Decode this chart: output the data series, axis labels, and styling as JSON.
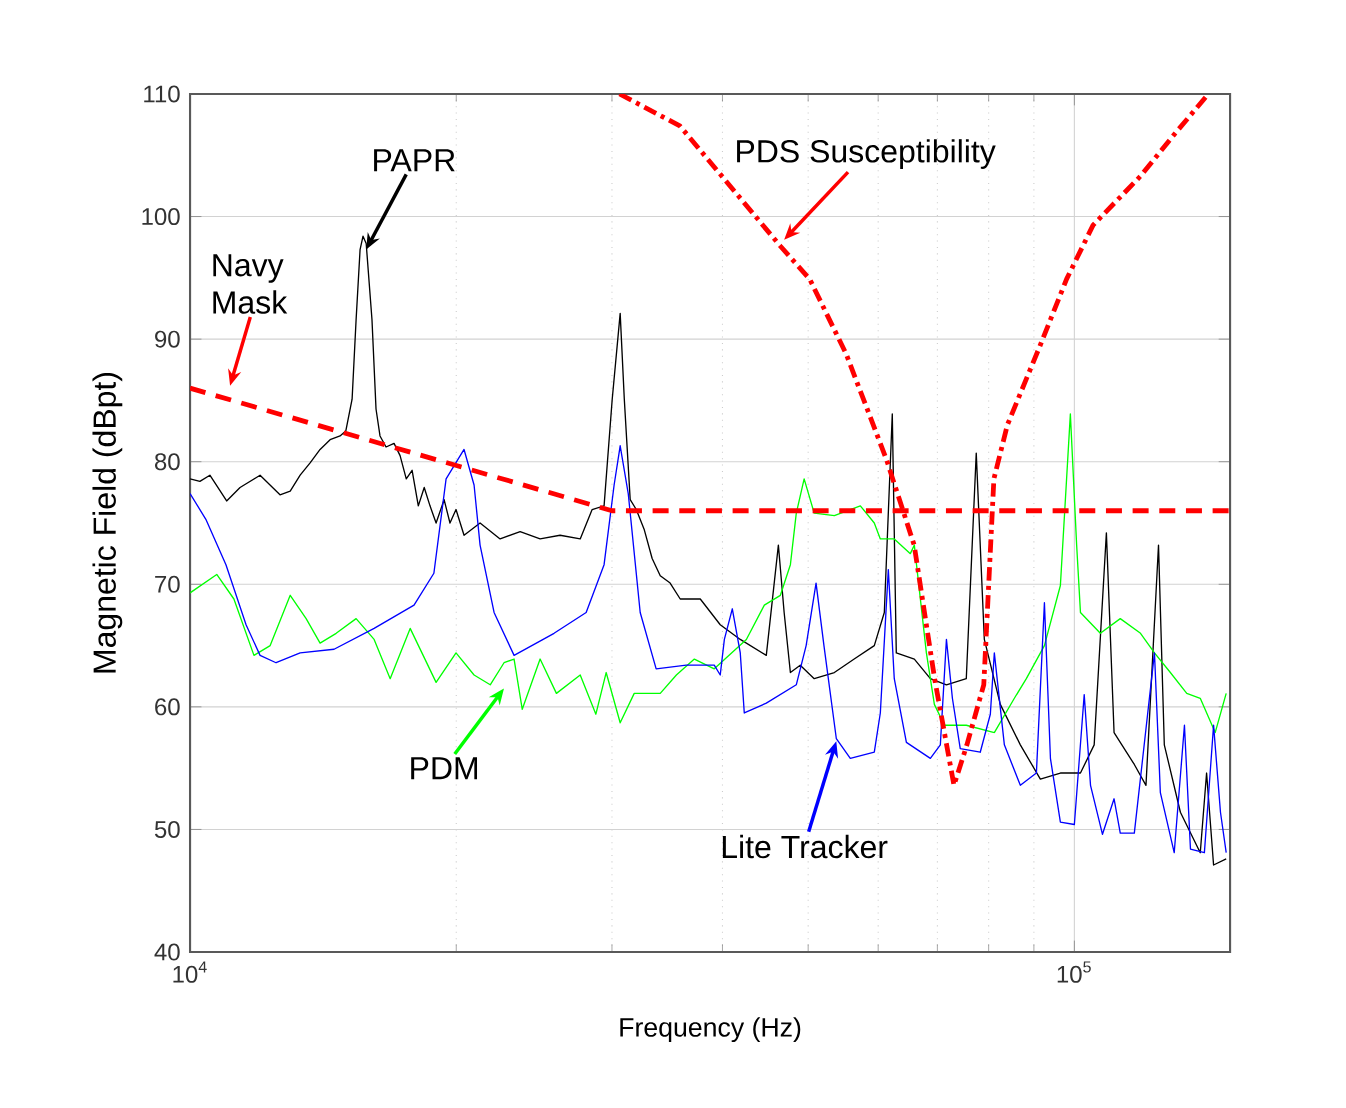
{
  "chart_data": {
    "type": "line",
    "xlabel": "Frequency (Hz)",
    "ylabel": "Magnetic Field (dBpt)",
    "log": "x",
    "grid": true,
    "xlim": [
      10000,
      150000
    ],
    "ylim": [
      40,
      110
    ],
    "xticks": [
      {
        "value": 10000,
        "label": "10$^{4}$"
      },
      {
        "value": 100000,
        "label": "10$^{5}$"
      }
    ],
    "yticks": [
      40,
      50,
      60,
      70,
      80,
      90,
      100,
      110
    ],
    "series": [
      {
        "name": "PAPR",
        "color": "#000000",
        "line_style": "solid",
        "x": [
          10000,
          10260,
          10530,
          11000,
          11390,
          12000,
          12640,
          12980,
          13320,
          13670,
          14030,
          14400,
          14780,
          15000,
          15250,
          15410,
          15570,
          15690,
          15820,
          16060,
          16230,
          16400,
          16660,
          17010,
          17280,
          17560,
          17830,
          18120,
          18400,
          18680,
          18980,
          19380,
          19680,
          19990,
          20410,
          21280,
          22420,
          23620,
          24880,
          26210,
          27620,
          28490,
          29390,
          30020,
          30650,
          30980,
          31460,
          31960,
          32620,
          33310,
          34020,
          34910,
          35840,
          37760,
          39780,
          41900,
          44840,
          46270,
          46970,
          47740,
          48980,
          50800,
          53530,
          56370,
          59400,
          60970,
          62250,
          62900,
          65930,
          68740,
          71670,
          75480,
          77470,
          79110,
          82470,
          86880,
          91530,
          96430,
          101600,
          105300,
          108700,
          110900,
          116900,
          120500,
          124500,
          126400,
          131800,
          138800,
          141100,
          143700,
          148500
        ],
        "values": [
          78.6,
          78.4,
          78.9,
          76.8,
          77.9,
          78.9,
          77.3,
          77.6,
          78.9,
          79.9,
          81.0,
          81.8,
          82.1,
          82.5,
          85.1,
          91.6,
          97.3,
          98.4,
          97.8,
          91.6,
          84.3,
          82.1,
          81.2,
          81.5,
          80.5,
          78.6,
          79.3,
          76.4,
          77.9,
          76.4,
          75.0,
          76.9,
          75.0,
          76.1,
          74.0,
          75.0,
          73.7,
          74.3,
          73.7,
          74.0,
          73.7,
          76.1,
          76.4,
          85.1,
          92.1,
          85.1,
          76.9,
          76.1,
          74.5,
          72.1,
          70.7,
          70.1,
          68.8,
          68.8,
          66.7,
          65.5,
          64.2,
          73.2,
          67.7,
          62.8,
          63.4,
          62.3,
          62.8,
          63.9,
          65.0,
          67.7,
          83.9,
          64.4,
          63.9,
          62.3,
          61.8,
          62.3,
          80.7,
          65.5,
          60.2,
          56.9,
          54.1,
          54.6,
          54.6,
          56.9,
          74.2,
          57.9,
          55.3,
          53.6,
          73.2,
          56.9,
          51.4,
          48.1,
          54.6,
          47.1,
          47.6
        ]
      },
      {
        "name": "PDM",
        "color": "#00ff00",
        "line_style": "solid",
        "x": [
          10000,
          10720,
          11210,
          11810,
          12320,
          12980,
          13530,
          14030,
          14630,
          15410,
          16150,
          16840,
          17740,
          18980,
          19990,
          20950,
          21850,
          22650,
          23250,
          23750,
          24880,
          25960,
          27620,
          28770,
          29550,
          30650,
          31790,
          34020,
          35480,
          37180,
          39160,
          42570,
          44610,
          46510,
          47740,
          48480,
          49480,
          50800,
          53530,
          57280,
          59400,
          60340,
          62570,
          65250,
          65930,
          68030,
          69460,
          71300,
          75480,
          81190,
          85540,
          88250,
          92500,
          96430,
          98970,
          100600,
          101600,
          107000,
          112700,
          118800,
          123200,
          128400,
          134000,
          138800,
          144300,
          148500
        ],
        "values": [
          69.3,
          70.8,
          68.8,
          64.2,
          65.0,
          69.1,
          67.2,
          65.2,
          66.0,
          67.2,
          65.5,
          62.3,
          66.4,
          62.0,
          64.4,
          62.6,
          61.8,
          63.6,
          63.9,
          59.8,
          63.9,
          61.1,
          62.6,
          59.4,
          62.8,
          58.7,
          61.1,
          61.1,
          62.6,
          63.9,
          63.1,
          65.5,
          68.3,
          69.1,
          71.6,
          75.8,
          78.6,
          75.8,
          75.6,
          76.4,
          75.0,
          73.7,
          73.7,
          72.5,
          73.2,
          64.4,
          60.2,
          58.5,
          58.5,
          57.9,
          60.7,
          62.3,
          65.0,
          69.9,
          83.9,
          73.2,
          67.7,
          66.0,
          67.2,
          66.0,
          64.4,
          62.8,
          61.1,
          60.7,
          57.9,
          61.1
        ]
      },
      {
        "name": "Lite Tracker",
        "color": "#0000ff",
        "line_style": "solid",
        "x": [
          10000,
          10420,
          10980,
          11570,
          12000,
          12510,
          13320,
          14550,
          16150,
          17920,
          18870,
          19480,
          20410,
          20950,
          21280,
          22070,
          23250,
          25800,
          28050,
          29390,
          30170,
          30650,
          31300,
          32290,
          33660,
          36400,
          39160,
          39780,
          40200,
          41040,
          41900,
          42340,
          44840,
          48480,
          49740,
          51040,
          52100,
          53810,
          55800,
          59400,
          60340,
          61610,
          62570,
          64580,
          68740,
          70550,
          71670,
          72800,
          74300,
          78280,
          80350,
          81190,
          83340,
          86880,
          90590,
          92500,
          93960,
          96430,
          100000,
          102600,
          104300,
          107600,
          110900,
          112700,
          116900,
          123200,
          125100,
          129700,
          133200,
          135300,
          140300,
          143700,
          146300,
          148500
        ],
        "values": [
          77.4,
          75.3,
          71.6,
          66.7,
          64.2,
          63.6,
          64.4,
          64.7,
          66.4,
          68.3,
          70.9,
          78.6,
          81.0,
          78.1,
          73.2,
          67.7,
          64.2,
          66.0,
          67.7,
          71.6,
          78.1,
          81.3,
          77.4,
          67.7,
          63.1,
          63.4,
          63.4,
          62.6,
          65.5,
          68.0,
          64.4,
          59.5,
          60.3,
          61.8,
          65.0,
          70.1,
          65.0,
          57.4,
          55.8,
          56.3,
          59.5,
          71.2,
          62.3,
          57.1,
          55.8,
          56.9,
          65.5,
          60.7,
          56.6,
          56.3,
          59.4,
          64.4,
          56.9,
          53.6,
          54.6,
          68.5,
          55.8,
          50.6,
          50.4,
          61.0,
          53.6,
          49.6,
          52.5,
          49.7,
          49.7,
          64.4,
          53.0,
          48.1,
          58.5,
          48.4,
          48.1,
          58.5,
          51.4,
          48.1
        ]
      },
      {
        "name": "Navy Mask",
        "color": "#ff0000",
        "line_style": "dashed",
        "x": [
          10000,
          30000,
          150000
        ],
        "values": [
          86,
          76,
          76
        ]
      },
      {
        "name": "PDS Susceptibility",
        "color": "#ff0000",
        "line_style": "dashdot",
        "x": [
          30600,
          35800,
          46500,
          50200,
          55200,
          61300,
          65900,
          69500,
          73100,
          75600,
          79000,
          81100,
          84000,
          91500,
          98000,
          105000,
          118800,
          129700,
          141000
        ],
        "values": [
          110,
          107.4,
          97.6,
          94.9,
          88.8,
          80.2,
          73.2,
          62.3,
          53.6,
          56.9,
          61.8,
          78.6,
          83.0,
          89.5,
          94.9,
          99.3,
          103.3,
          106.7,
          109.8
        ]
      }
    ]
  }
}
